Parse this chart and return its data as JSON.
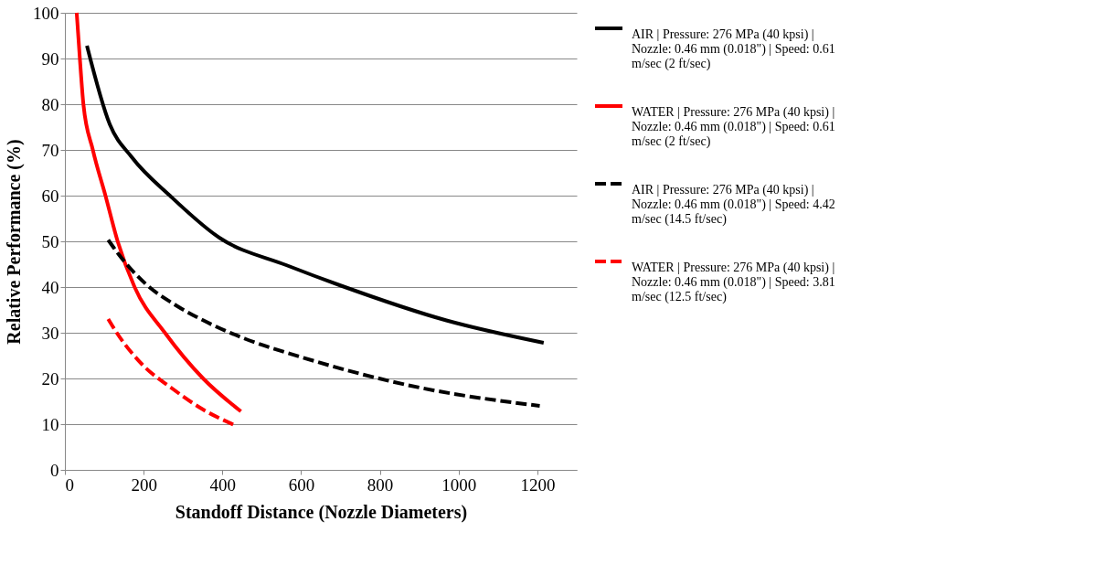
{
  "chart_data": {
    "type": "line",
    "xlabel": "Standoff Distance (Nozzle Diameters)",
    "ylabel": "Relative Performance (%)",
    "xlim": [
      0,
      1300
    ],
    "xticks": [
      0,
      200,
      400,
      600,
      800,
      1000,
      1200
    ],
    "ylim": [
      0,
      100
    ],
    "yticks": [
      0,
      10,
      20,
      30,
      40,
      50,
      60,
      70,
      80,
      90,
      100
    ],
    "grid": "y",
    "legend": "right",
    "marker": "none",
    "series": [
      {
        "name": "AIR | Pressure: 276 MPa (40 kpsi) | Nozzle:  0.46 mm (0.018\") | Speed:  0.61 m/sec (2 ft/sec)",
        "color": "#000000",
        "line_style": "solid",
        "x": [
          56,
          114,
          170,
          268,
          394,
          562,
          698,
          969,
          1216
        ],
        "values": [
          92.8,
          75.6,
          68.4,
          59.9,
          50.7,
          44.8,
          40.4,
          32.7,
          27.8
        ]
      },
      {
        "name": "WATER | Pressure: 276 MPa (40 kpsi) | Nozzle:  0.46 mm (0.018\") | Speed:  0.61 m/sec (2 ft/sec)",
        "color": "#ff0000",
        "line_style": "solid",
        "x": [
          30,
          38,
          47,
          71,
          103,
          134,
          177,
          254,
          351,
          447
        ],
        "values": [
          100,
          90,
          80,
          70,
          60,
          50,
          40,
          30,
          20,
          12.8
        ]
      },
      {
        "name": "AIR | Pressure: 276 MPa (40 kpsi) | Nozzle:  0.46 mm (0.018\") | Speed:  4.42 m/sec (14.5 ft/sec)",
        "color": "#000000",
        "line_style": "dashed",
        "x": [
          110,
          138,
          205,
          282,
          373,
          457,
          599,
          901,
          1206
        ],
        "values": [
          50.3,
          47,
          40.7,
          36,
          31.8,
          28.7,
          24.7,
          18,
          14
        ]
      },
      {
        "name": "WATER | Pressure: 276 MPa (40 kpsi) | Nozzle:  0.46 mm (0.018\") | Speed:  3.81 m/sec (12.5 ft/sec)",
        "color": "#ff0000",
        "line_style": "dashed",
        "x": [
          110,
          134,
          197,
          271,
          351,
          436
        ],
        "values": [
          33,
          29.7,
          23,
          17.9,
          13.2,
          9.6
        ]
      }
    ]
  }
}
